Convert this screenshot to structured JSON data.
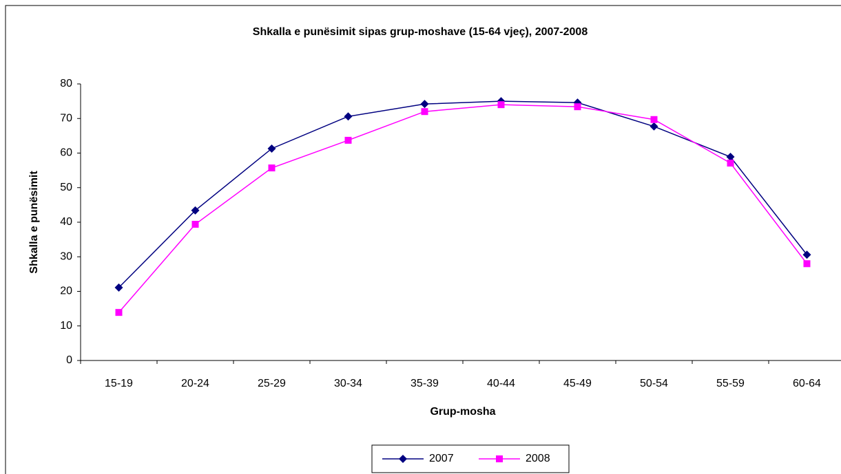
{
  "chart_data": {
    "type": "line",
    "title": "Shkalla e punësimit sipas grup-moshave (15-64 vjeç), 2007-2008",
    "x_label": "Grup-mosha",
    "y_label": "Shkalla e punësimit",
    "categories": [
      "15-19",
      "20-24",
      "25-29",
      "30-34",
      "35-39",
      "40-44",
      "45-49",
      "50-54",
      "55-59",
      "60-64"
    ],
    "series": [
      {
        "name": "2007",
        "color": "#000080",
        "marker": "diamond",
        "values": [
          21.1,
          43.4,
          61.3,
          70.6,
          74.2,
          75.0,
          74.6,
          67.7,
          58.9,
          30.6
        ]
      },
      {
        "name": "2008",
        "color": "#ff00ff",
        "marker": "square",
        "values": [
          13.9,
          39.4,
          55.7,
          63.7,
          72.0,
          74.0,
          73.4,
          69.7,
          57.1,
          28.0
        ]
      }
    ],
    "ylim": [
      0,
      80
    ],
    "yticks": [
      0,
      10,
      20,
      30,
      40,
      50,
      60,
      70,
      80
    ],
    "legend": "bottom"
  }
}
